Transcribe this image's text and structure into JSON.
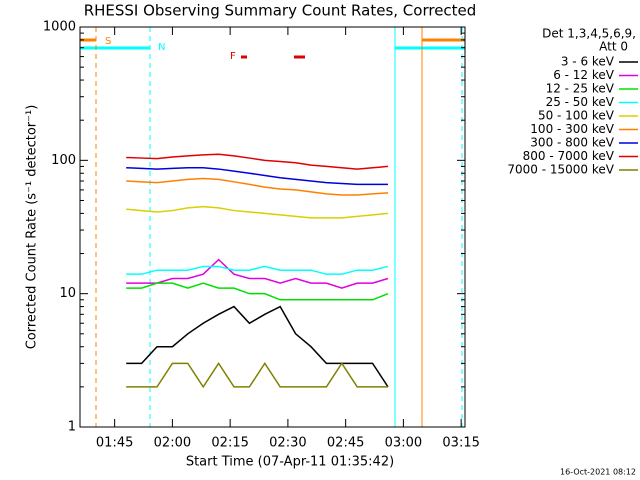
{
  "chart_data": {
    "type": "line",
    "title": "RHESSI Observing Summary Count Rates, Corrected",
    "x_label": "Start Time (07-Apr-11 01:35:42)",
    "y_label": "Corrected Count Rate (s⁻¹ detector⁻¹)",
    "legend_title": [
      "Det 1,3,4,5,6,9,",
      "Att 0"
    ],
    "footer": "16-Oct-2021 08:12",
    "flags": [
      "S",
      "N",
      "F"
    ],
    "log_y": true,
    "xlim": [
      96,
      196
    ],
    "ylim": [
      1,
      1000
    ],
    "xticks": [
      {
        "value": 105,
        "label": "01:45"
      },
      {
        "value": 120,
        "label": "02:00"
      },
      {
        "value": 135,
        "label": "02:15"
      },
      {
        "value": 150,
        "label": "02:30"
      },
      {
        "value": 165,
        "label": "02:45"
      },
      {
        "value": 180,
        "label": "03:00"
      },
      {
        "value": 195,
        "label": "03:15"
      }
    ],
    "yticks": [
      1,
      10,
      100,
      1000
    ],
    "x": [
      108,
      112,
      116,
      120,
      124,
      128,
      132,
      136,
      140,
      144,
      148,
      152,
      156,
      160,
      164,
      168,
      172,
      176
    ],
    "series": [
      {
        "name": "3 - 6 keV",
        "color": "#000000",
        "values": [
          3,
          3,
          4,
          4,
          5,
          6,
          7,
          8,
          6,
          7,
          8,
          5,
          4,
          3,
          3,
          3,
          3,
          2
        ]
      },
      {
        "name": "6 - 12 keV",
        "color": "#e000e0",
        "values": [
          12,
          12,
          12,
          13,
          13,
          14,
          18,
          14,
          13,
          13,
          12,
          13,
          12,
          12,
          11,
          12,
          12,
          13
        ]
      },
      {
        "name": "12 - 25 keV",
        "color": "#00e000",
        "values": [
          11,
          11,
          12,
          12,
          11,
          12,
          11,
          11,
          10,
          10,
          9,
          9,
          9,
          9,
          9,
          9,
          9,
          10
        ]
      },
      {
        "name": "25 - 50 keV",
        "color": "#00ffff",
        "values": [
          14,
          14,
          15,
          15,
          15,
          16,
          16,
          15,
          15,
          16,
          15,
          15,
          15,
          14,
          14,
          15,
          15,
          16
        ]
      },
      {
        "name": "50 - 100 keV",
        "color": "#d8d000",
        "values": [
          43,
          42,
          41,
          42,
          44,
          45,
          44,
          42,
          41,
          40,
          39,
          38,
          37,
          37,
          37,
          38,
          39,
          40
        ]
      },
      {
        "name": "100 - 300 keV",
        "color": "#ff8000",
        "values": [
          70,
          69,
          68,
          70,
          72,
          73,
          72,
          69,
          66,
          63,
          61,
          60,
          58,
          56,
          55,
          55,
          56,
          57
        ]
      },
      {
        "name": "300 - 800 keV",
        "color": "#0000e0",
        "values": [
          88,
          87,
          86,
          87,
          88,
          88,
          86,
          83,
          80,
          77,
          74,
          72,
          70,
          68,
          67,
          66,
          66,
          66
        ]
      },
      {
        "name": "800 - 7000 keV",
        "color": "#e00000",
        "values": [
          105,
          104,
          103,
          106,
          108,
          110,
          111,
          108,
          104,
          100,
          98,
          96,
          92,
          90,
          88,
          86,
          88,
          90
        ]
      },
      {
        "name": "7000 - 15000 keV",
        "color": "#808000",
        "values": [
          2,
          2,
          2,
          3,
          3,
          2,
          3,
          2,
          2,
          3,
          2,
          2,
          2,
          2,
          3,
          2,
          2,
          2
        ]
      }
    ]
  }
}
